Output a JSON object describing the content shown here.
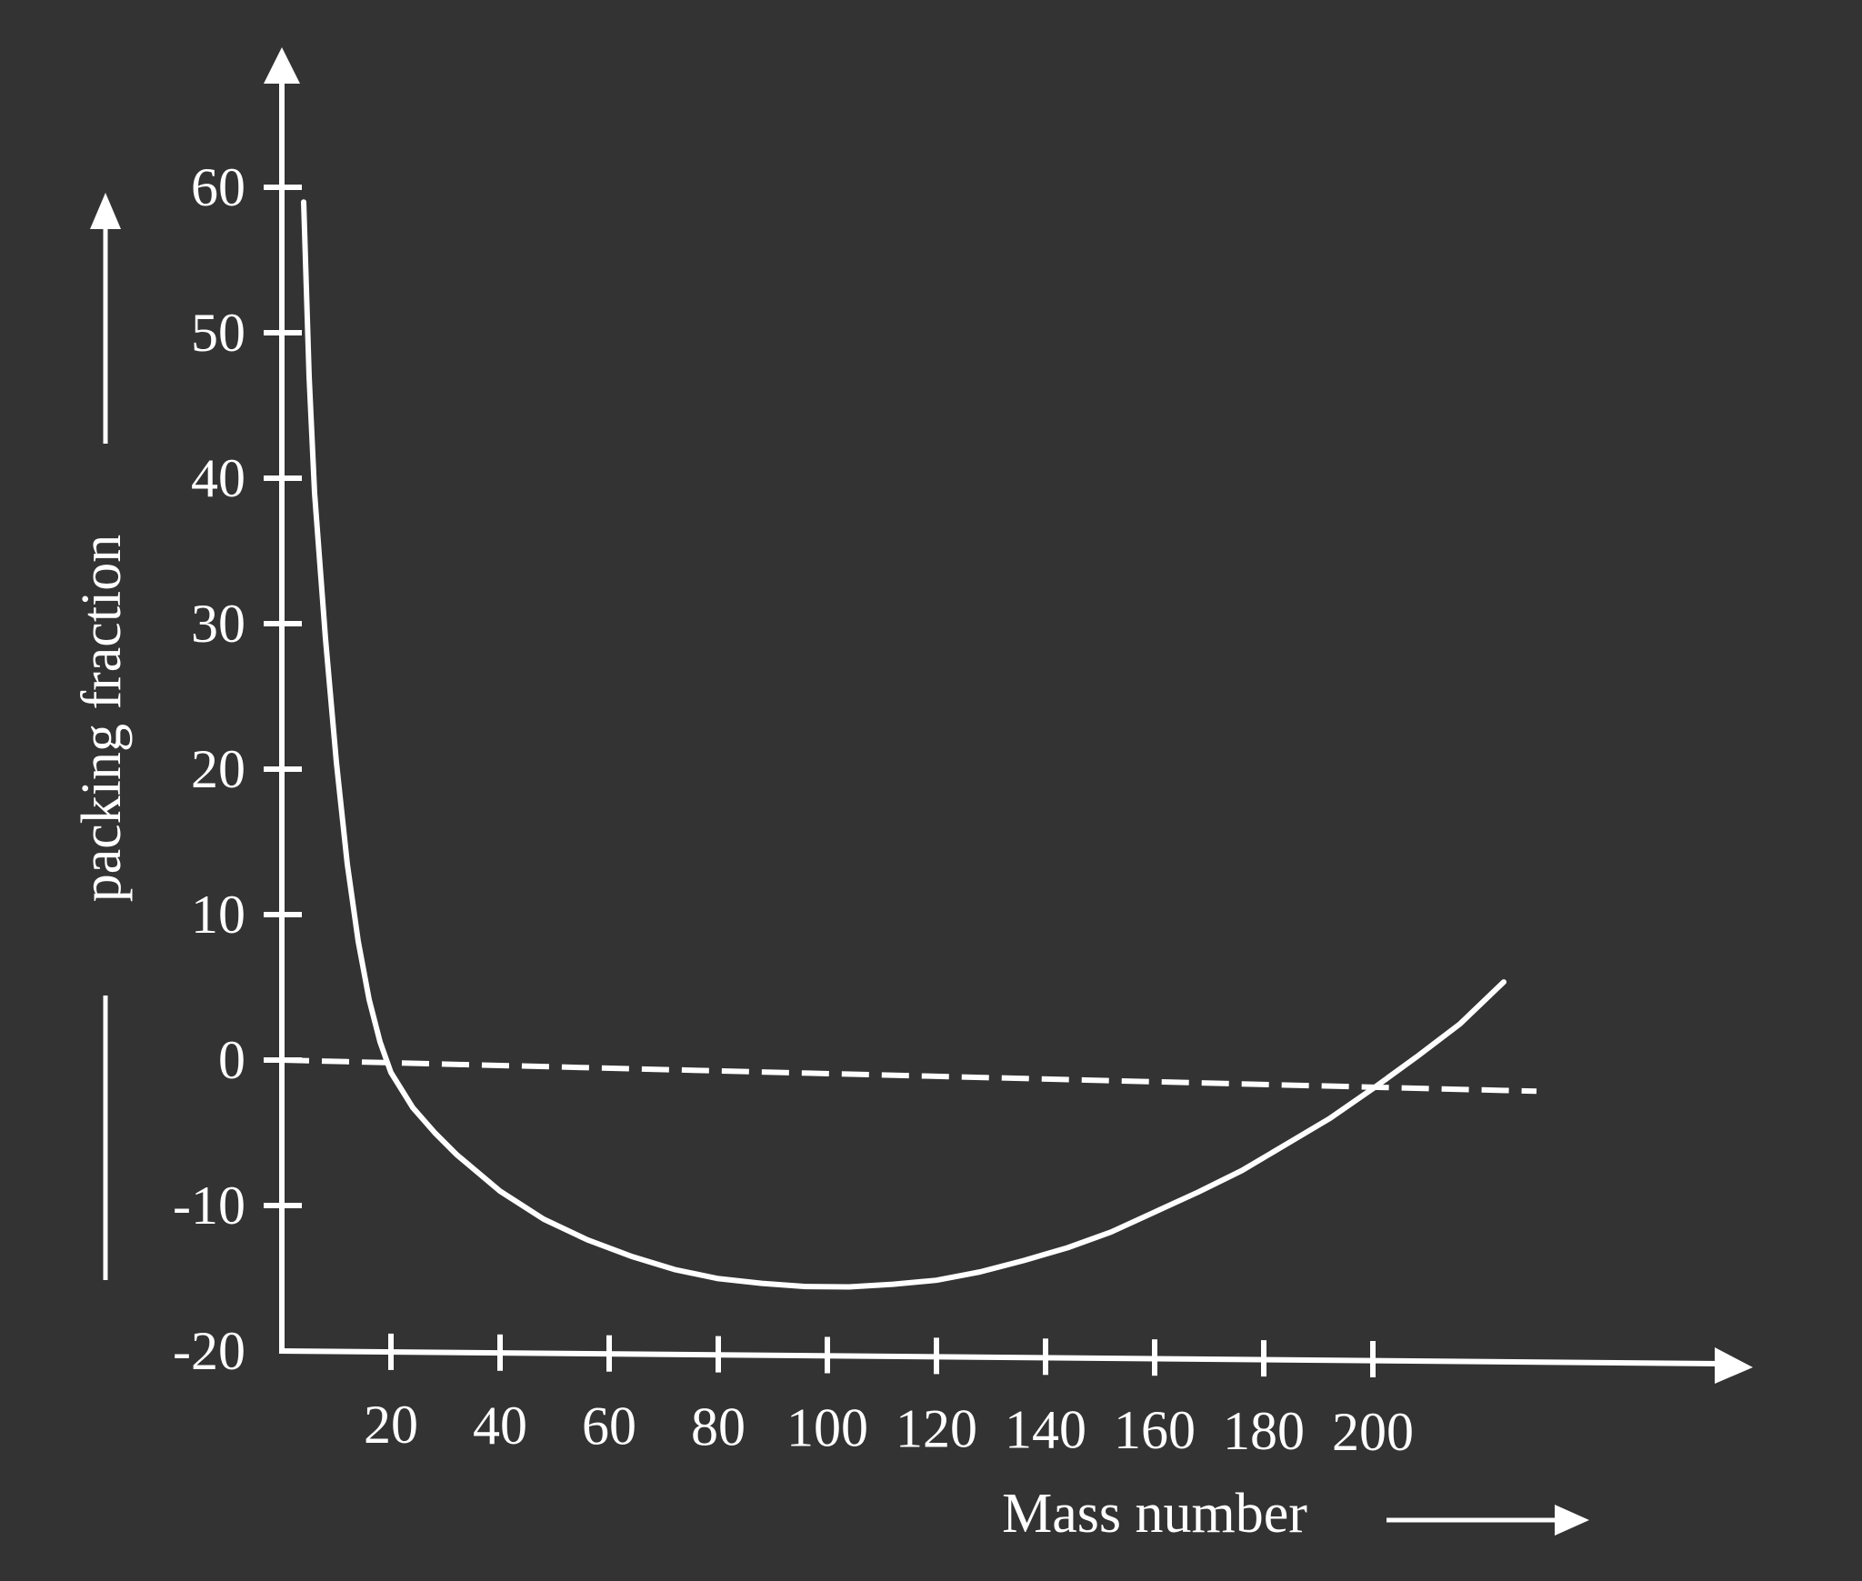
{
  "chart_data": {
    "type": "line",
    "xlabel": "Mass number",
    "ylabel": "packing fraction",
    "x_ticks": [
      20,
      40,
      60,
      80,
      100,
      120,
      140,
      160,
      180,
      200
    ],
    "y_ticks": [
      -20,
      -10,
      0,
      10,
      20,
      30,
      40,
      50,
      60
    ],
    "xlim": [
      0,
      230
    ],
    "ylim": [
      -20,
      60
    ],
    "grid": false,
    "legend": "none",
    "colors": {
      "background": "#333333",
      "foreground": "#ffffff"
    },
    "series": [
      {
        "style": "solid",
        "x": [
          4,
          5,
          6,
          8,
          10,
          12,
          14,
          16,
          18,
          20,
          24,
          28,
          32,
          40,
          48,
          56,
          64,
          72,
          80,
          88,
          96,
          104,
          112,
          120,
          128,
          136,
          144,
          152,
          160,
          168,
          176,
          184,
          192,
          200,
          208,
          216,
          224
        ],
        "y": [
          59,
          47,
          39,
          29,
          20.5,
          13.5,
          8.2,
          4.2,
          1.3,
          -0.8,
          -3.2,
          -4.9,
          -6.4,
          -8.9,
          -10.8,
          -12.2,
          -13.3,
          -14.2,
          -14.8,
          -15.1,
          -15.3,
          -15.3,
          -15.1,
          -14.8,
          -14.2,
          -13.4,
          -12.5,
          -11.4,
          -10,
          -8.6,
          -7.1,
          -5.3,
          -3.5,
          -1.4,
          0.8,
          3.1,
          6
        ]
      },
      {
        "style": "dashed",
        "x": [
          0,
          230
        ],
        "y": [
          0,
          -1.5
        ]
      }
    ]
  }
}
